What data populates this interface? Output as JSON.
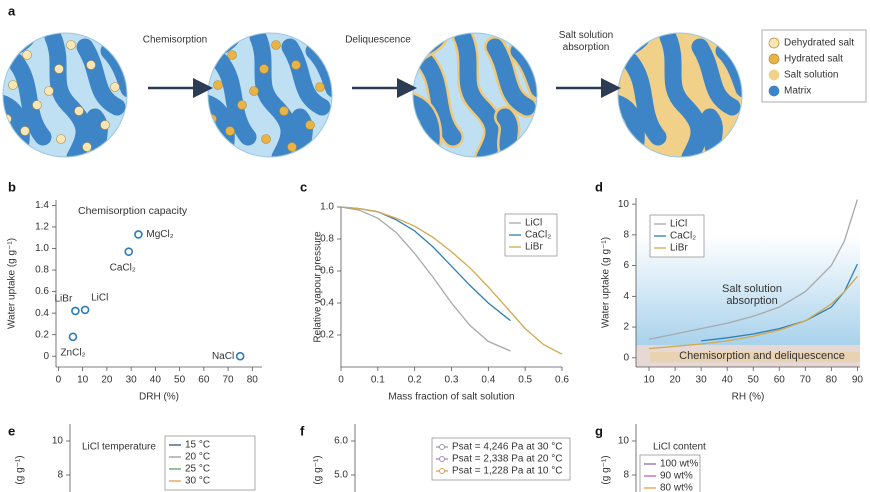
{
  "panel_a": {
    "label": "a",
    "steps": [
      "Chemisorption",
      "Deliquescence",
      "Salt solution absorption"
    ],
    "legend": [
      "Dehydrated salt",
      "Hydrated salt",
      "Salt solution",
      "Matrix"
    ]
  },
  "chart_data": [
    {
      "panel": "b",
      "type": "scatter",
      "title": "Chemisorption capacity",
      "xlabel": "DRH (%)",
      "ylabel": "Water uptake (g g⁻¹)",
      "x": [
        7,
        11,
        6,
        29,
        33,
        75
      ],
      "values": [
        0.42,
        0.43,
        0.18,
        0.97,
        1.13,
        0
      ],
      "point_labels": [
        "LiBr",
        "LiCl",
        "ZnCl₂",
        "CaCl₂",
        "MgCl₂",
        "NaCl"
      ],
      "color": "#2b7bb9",
      "xlim": [
        -1,
        84
      ],
      "xticks": [
        0,
        10,
        20,
        30,
        40,
        50,
        60,
        70,
        80
      ],
      "ylim": [
        -0.1,
        1.45
      ],
      "yticks": [
        0,
        0.2,
        0.4,
        0.6,
        0.8,
        {
          "value": 1,
          "label": "1.0"
        },
        1.2,
        1.4
      ]
    },
    {
      "panel": "c",
      "type": "line",
      "xlabel": "Mass fraction of salt solution",
      "ylabel": "Relative vapour pressure",
      "xlim": [
        0,
        0.6
      ],
      "xticks": [
        0,
        0.1,
        0.2,
        0.3,
        0.4,
        0.5,
        0.6
      ],
      "ylim": [
        0,
        1.0
      ],
      "yticks": [
        0.2,
        0.4,
        0.6,
        0.8,
        {
          "value": 1,
          "label": "1.0"
        }
      ],
      "series": [
        {
          "name": "LiCl",
          "color": "#a9a9a9",
          "x": [
            0,
            0.05,
            0.1,
            0.15,
            0.2,
            0.25,
            0.3,
            0.35,
            0.4,
            0.46
          ],
          "values": [
            1.0,
            0.98,
            0.93,
            0.84,
            0.71,
            0.56,
            0.4,
            0.26,
            0.16,
            0.1
          ]
        },
        {
          "name": "CaCl₂",
          "color": "#2f7fb5",
          "x": [
            0,
            0.05,
            0.1,
            0.15,
            0.2,
            0.25,
            0.3,
            0.35,
            0.4,
            0.46
          ],
          "values": [
            1.0,
            0.99,
            0.97,
            0.92,
            0.85,
            0.75,
            0.63,
            0.51,
            0.4,
            0.29
          ]
        },
        {
          "name": "LiBr",
          "color": "#d4a84f",
          "x": [
            0,
            0.05,
            0.1,
            0.15,
            0.2,
            0.25,
            0.3,
            0.35,
            0.4,
            0.45,
            0.5,
            0.55,
            0.6
          ],
          "values": [
            1.0,
            0.99,
            0.97,
            0.93,
            0.88,
            0.81,
            0.72,
            0.62,
            0.5,
            0.37,
            0.24,
            0.14,
            0.08
          ]
        }
      ]
    },
    {
      "panel": "d",
      "type": "line",
      "xlabel": "RH (%)",
      "ylabel": "Water uptake (g g⁻¹)",
      "annotations": [
        "Salt solution absorption",
        "Chemisorption and deliquescence"
      ],
      "xlim": [
        5,
        91
      ],
      "xticks": [
        10,
        20,
        30,
        40,
        50,
        60,
        70,
        80,
        90
      ],
      "ylim": [
        -0.6,
        10.4
      ],
      "yticks": [
        0,
        2,
        4,
        6,
        8,
        10
      ],
      "series": [
        {
          "name": "LiCl",
          "color": "#a9a9a9",
          "x": [
            10,
            20,
            30,
            40,
            50,
            60,
            70,
            80,
            85,
            90
          ],
          "values": [
            1.2,
            1.55,
            1.9,
            2.25,
            2.7,
            3.3,
            4.3,
            6.0,
            7.6,
            10.3
          ]
        },
        {
          "name": "CaCl₂",
          "color": "#2f7fb5",
          "x": [
            30,
            40,
            50,
            60,
            70,
            80,
            85,
            90
          ],
          "values": [
            1.1,
            1.3,
            1.55,
            1.9,
            2.4,
            3.3,
            4.3,
            6.1
          ]
        },
        {
          "name": "LiBr",
          "color": "#d4a84f",
          "x": [
            10,
            20,
            30,
            40,
            50,
            60,
            70,
            80,
            85,
            90
          ],
          "values": [
            0.6,
            0.75,
            0.9,
            1.1,
            1.4,
            1.8,
            2.4,
            3.5,
            4.3,
            5.3
          ]
        }
      ]
    },
    {
      "panel": "e",
      "type": "line",
      "ylabel": "(g g⁻¹)",
      "legend_title": "LiCl temperature",
      "ylim": [
        7,
        11
      ],
      "yticks": [
        8,
        10
      ],
      "series": [
        {
          "name": "15 °C",
          "color": "#3a4e8c"
        },
        {
          "name": "20 °C",
          "color": "#9a9a9a"
        },
        {
          "name": "25 °C",
          "color": "#5aa05a"
        },
        {
          "name": "30 °C",
          "color": "#e0a050"
        }
      ]
    },
    {
      "panel": "f",
      "type": "line",
      "ylabel": "(g g⁻¹)",
      "ylim": [
        4.5,
        6.5
      ],
      "yticks": [
        {
          "value": 5,
          "label": "5.0"
        },
        {
          "value": 6,
          "label": "6.0"
        }
      ],
      "series": [
        {
          "name": "Psat = 4,246 Pa at 30 °C",
          "color": "#9a9aa8"
        },
        {
          "name": "Psat = 2,338 Pa at 20 °C",
          "color": "#a58ac4"
        },
        {
          "name": "Psat = 1,228 Pa at 10 °C",
          "color": "#e0a050"
        }
      ]
    },
    {
      "panel": "g",
      "type": "line",
      "ylabel": "(g g⁻¹)",
      "legend_title": "LiCl content",
      "ylim": [
        7,
        11
      ],
      "yticks": [
        8,
        10
      ],
      "series": [
        {
          "name": "100 wt%",
          "color": "#8a6ab8"
        },
        {
          "name": "90 wt%",
          "color": "#c660a8"
        },
        {
          "name": "80 wt%",
          "color": "#e0a050"
        }
      ]
    }
  ]
}
